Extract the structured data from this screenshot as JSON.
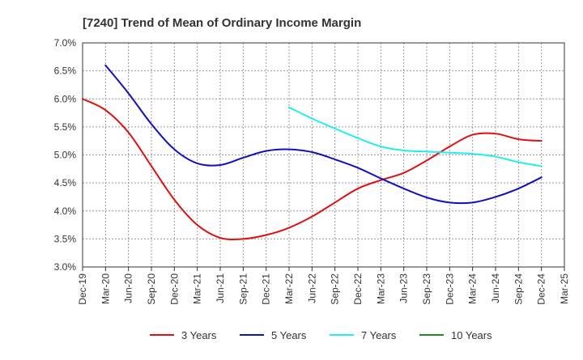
{
  "chart_data": {
    "type": "line",
    "title": "[7240]  Trend of Mean of Ordinary Income Margin",
    "xlabel": "",
    "ylabel": "",
    "x_ticks": [
      "Dec-19",
      "Mar-20",
      "Jun-20",
      "Sep-20",
      "Dec-20",
      "Mar-21",
      "Jun-21",
      "Sep-21",
      "Dec-21",
      "Mar-22",
      "Jun-22",
      "Sep-22",
      "Dec-22",
      "Mar-23",
      "Jun-23",
      "Sep-23",
      "Dec-23",
      "Mar-24",
      "Jun-24",
      "Sep-24",
      "Dec-24",
      "Mar-25"
    ],
    "y_ticks": [
      "3.0%",
      "3.5%",
      "4.0%",
      "4.5%",
      "5.0%",
      "5.5%",
      "6.0%",
      "6.5%",
      "7.0%"
    ],
    "ylim": [
      3.0,
      7.0
    ],
    "grid": "dashed",
    "legend_position": "bottom",
    "series": [
      {
        "name": "3 Years",
        "color": "#dd1111",
        "points": [
          [
            "Dec-19",
            6.0
          ],
          [
            "Mar-20",
            5.8
          ],
          [
            "Jun-20",
            5.4
          ],
          [
            "Sep-20",
            4.8
          ],
          [
            "Dec-20",
            4.2
          ],
          [
            "Mar-21",
            3.75
          ],
          [
            "Jun-21",
            3.52
          ],
          [
            "Sep-21",
            3.5
          ],
          [
            "Dec-21",
            3.57
          ],
          [
            "Mar-22",
            3.7
          ],
          [
            "Jun-22",
            3.9
          ],
          [
            "Sep-22",
            4.15
          ],
          [
            "Dec-22",
            4.4
          ],
          [
            "Mar-23",
            4.55
          ],
          [
            "Jun-23",
            4.68
          ],
          [
            "Sep-23",
            4.9
          ],
          [
            "Dec-23",
            5.15
          ],
          [
            "Mar-24",
            5.36
          ],
          [
            "Jun-24",
            5.38
          ],
          [
            "Sep-24",
            5.28
          ],
          [
            "Dec-24",
            5.25
          ]
        ]
      },
      {
        "name": "5 Years",
        "color": "#1111bb",
        "points": [
          [
            "Mar-20",
            6.6
          ],
          [
            "Jun-20",
            6.1
          ],
          [
            "Sep-20",
            5.55
          ],
          [
            "Dec-20",
            5.1
          ],
          [
            "Mar-21",
            4.85
          ],
          [
            "Jun-21",
            4.82
          ],
          [
            "Sep-21",
            4.95
          ],
          [
            "Dec-21",
            5.07
          ],
          [
            "Mar-22",
            5.1
          ],
          [
            "Jun-22",
            5.05
          ],
          [
            "Sep-22",
            4.92
          ],
          [
            "Dec-22",
            4.77
          ],
          [
            "Mar-23",
            4.58
          ],
          [
            "Jun-23",
            4.4
          ],
          [
            "Sep-23",
            4.24
          ],
          [
            "Dec-23",
            4.15
          ],
          [
            "Mar-24",
            4.15
          ],
          [
            "Jun-24",
            4.25
          ],
          [
            "Sep-24",
            4.4
          ],
          [
            "Dec-24",
            4.6
          ]
        ]
      },
      {
        "name": "7 Years",
        "color": "#22eeee",
        "points": [
          [
            "Mar-22",
            5.85
          ],
          [
            "Jun-22",
            5.65
          ],
          [
            "Sep-22",
            5.47
          ],
          [
            "Dec-22",
            5.3
          ],
          [
            "Mar-23",
            5.15
          ],
          [
            "Jun-23",
            5.08
          ],
          [
            "Sep-23",
            5.06
          ],
          [
            "Dec-23",
            5.04
          ],
          [
            "Mar-24",
            5.02
          ],
          [
            "Jun-24",
            4.97
          ],
          [
            "Sep-24",
            4.87
          ],
          [
            "Dec-24",
            4.8
          ]
        ]
      },
      {
        "name": "10 Years",
        "color": "#228822",
        "points": []
      }
    ]
  }
}
